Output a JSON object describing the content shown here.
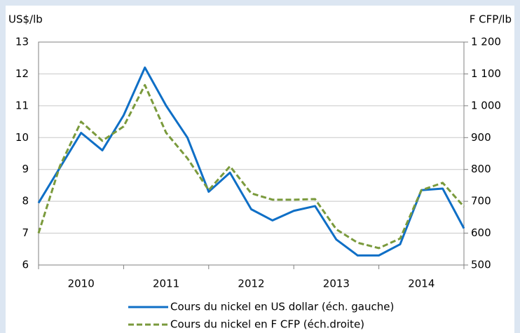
{
  "chart_data": {
    "type": "line",
    "y_label": "US$/lb",
    "y2_label": "F CFP/lb",
    "x": [
      2010,
      2010.25,
      2010.5,
      2010.75,
      2011,
      2011.25,
      2011.5,
      2011.75,
      2012,
      2012.25,
      2012.5,
      2012.75,
      2013,
      2013.25,
      2013.5,
      2013.75,
      2014,
      2014.25,
      2014.5,
      2014.75,
      2015
    ],
    "xlim": [
      2010,
      2015
    ],
    "xticks": [
      2010,
      2011,
      2012,
      2013,
      2014,
      2015
    ],
    "xticklabels": [
      {
        "value": 2010.5,
        "label": "2010"
      },
      {
        "value": 2011.5,
        "label": "2011"
      },
      {
        "value": 2012.5,
        "label": "2012"
      },
      {
        "value": 2013.5,
        "label": "2013"
      },
      {
        "value": 2014.5,
        "label": "2014"
      }
    ],
    "ylim": [
      6,
      13
    ],
    "yticks": [
      6,
      7,
      8,
      9,
      10,
      11,
      12,
      13
    ],
    "y2lim": [
      500,
      1200
    ],
    "y2ticks": [
      500,
      600,
      700,
      800,
      900,
      {
        "value": 1000,
        "label": "1 000"
      },
      {
        "value": 1100,
        "label": "1 100"
      },
      {
        "value": 1200,
        "label": "1 200"
      }
    ],
    "grid": true,
    "series": [
      {
        "name": "Cours du nickel en US dollar (éch. gauche)",
        "color": "#0f6fc6",
        "dashed": false,
        "values": [
          7.95,
          9.05,
          10.15,
          9.6,
          10.7,
          12.2,
          11.0,
          10.0,
          8.3,
          8.9,
          7.75,
          7.4,
          7.7,
          7.85,
          6.8,
          6.3,
          6.3,
          6.65,
          8.35,
          8.4,
          7.15
        ]
      },
      {
        "name": "Cours du nickel en F CFP (éch.droite)",
        "color": "#7a9a3c",
        "dashed": true,
        "axis": "y2",
        "values": [
          600,
          810,
          950,
          890,
          935,
          1065,
          915,
          835,
          735,
          810,
          725,
          705,
          705,
          707,
          612,
          570,
          553,
          583,
          735,
          758,
          683
        ]
      }
    ]
  }
}
